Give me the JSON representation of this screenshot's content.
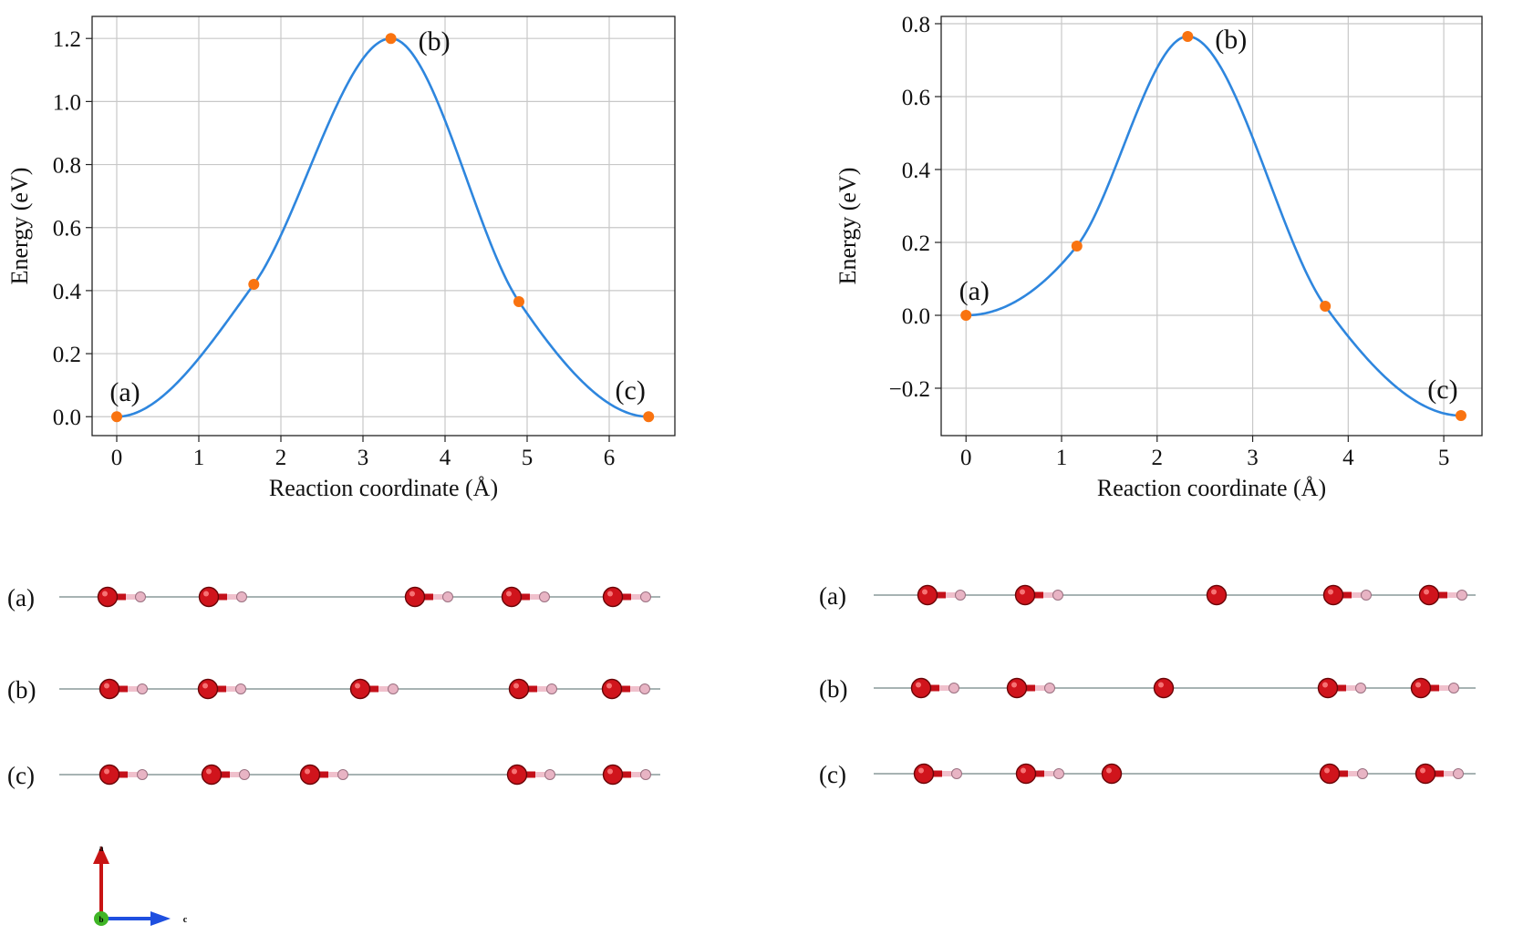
{
  "chart_data": [
    {
      "type": "line",
      "xlabel": "Reaction coordinate (Å)",
      "ylabel": "Energy (eV)",
      "xlim": [
        -0.3,
        6.8
      ],
      "ylim": [
        -0.06,
        1.27
      ],
      "xticks": [
        0,
        1,
        2,
        3,
        4,
        5,
        6
      ],
      "yticks": [
        0.0,
        0.2,
        0.4,
        0.6,
        0.8,
        1.0,
        1.2
      ],
      "yticklabels": [
        "0.0",
        "0.2",
        "0.4",
        "0.6",
        "0.8",
        "1.0",
        "1.2"
      ],
      "grid": true,
      "series": [
        {
          "kind": "curve",
          "color": "#2e86de",
          "x": [
            0,
            1.67,
            3.34,
            4.9,
            6.48
          ],
          "values": [
            0.0,
            0.42,
            1.2,
            0.365,
            0.0
          ]
        },
        {
          "kind": "points",
          "color": "#f97310",
          "x": [
            0,
            1.67,
            3.34,
            4.9,
            6.48
          ],
          "values": [
            0.0,
            0.42,
            1.2,
            0.365,
            0.0
          ]
        }
      ],
      "annotations": [
        {
          "text": "(a)",
          "x": 0,
          "y": 0.0,
          "pos": "above"
        },
        {
          "text": "(b)",
          "x": 3.34,
          "y": 1.2,
          "pos": "right"
        },
        {
          "text": "(c)",
          "x": 6.48,
          "y": 0.0,
          "pos": "above-left"
        }
      ]
    },
    {
      "type": "line",
      "xlabel": "Reaction coordinate (Å)",
      "ylabel": "Energy (eV)",
      "xlim": [
        -0.26,
        5.4
      ],
      "ylim": [
        -0.33,
        0.82
      ],
      "xticks": [
        0,
        1,
        2,
        3,
        4,
        5
      ],
      "yticks": [
        -0.2,
        0.0,
        0.2,
        0.4,
        0.6,
        0.8
      ],
      "yticklabels": [
        "−0.2",
        "0.0",
        "0.2",
        "0.4",
        "0.6",
        "0.8"
      ],
      "grid": true,
      "series": [
        {
          "kind": "curve",
          "color": "#2e86de",
          "x": [
            0,
            1.16,
            2.32,
            3.76,
            5.18
          ],
          "values": [
            0.0,
            0.19,
            0.765,
            0.025,
            -0.275
          ]
        },
        {
          "kind": "points",
          "color": "#f97310",
          "x": [
            0,
            1.16,
            2.32,
            3.76,
            5.18
          ],
          "values": [
            0.0,
            0.19,
            0.765,
            0.025,
            -0.275
          ]
        }
      ],
      "annotations": [
        {
          "text": "(a)",
          "x": 0,
          "y": 0.0,
          "pos": "above"
        },
        {
          "text": "(b)",
          "x": 2.32,
          "y": 0.765,
          "pos": "right"
        },
        {
          "text": "(c)",
          "x": 5.18,
          "y": -0.275,
          "pos": "above-left"
        }
      ]
    }
  ],
  "structures": {
    "colors": {
      "oxygen": "#d0141c",
      "hydrogen": "#e8b4c4",
      "bond_o": "#c4101a",
      "bond_h": "#f0c0cc",
      "chain": "#8a9a9a"
    },
    "panels": [
      {
        "rows": [
          {
            "label": "(a)",
            "molecules": [
              "OH",
              "OH",
              "OH",
              "OH",
              "OH"
            ]
          },
          {
            "label": "(b)",
            "molecules": [
              "OH",
              "OH",
              "OH",
              "OH",
              "OH"
            ]
          },
          {
            "label": "(c)",
            "molecules": [
              "OH",
              "OH",
              "OH",
              "OH",
              "OH"
            ]
          }
        ]
      },
      {
        "rows": [
          {
            "label": "(a)",
            "molecules": [
              "OH",
              "OH",
              "O",
              "OH",
              "OH"
            ]
          },
          {
            "label": "(b)",
            "molecules": [
              "OH",
              "OH",
              "O",
              "OH",
              "OH"
            ]
          },
          {
            "label": "(c)",
            "molecules": [
              "OH",
              "OH",
              "O",
              "OH",
              "OH"
            ]
          }
        ]
      }
    ]
  },
  "axes_indicator": {
    "labels": {
      "up": "a",
      "right": "c",
      "origin": "b"
    },
    "colors": {
      "up": "#c81414",
      "right": "#1e4fe0",
      "origin": "#3fb526"
    }
  }
}
